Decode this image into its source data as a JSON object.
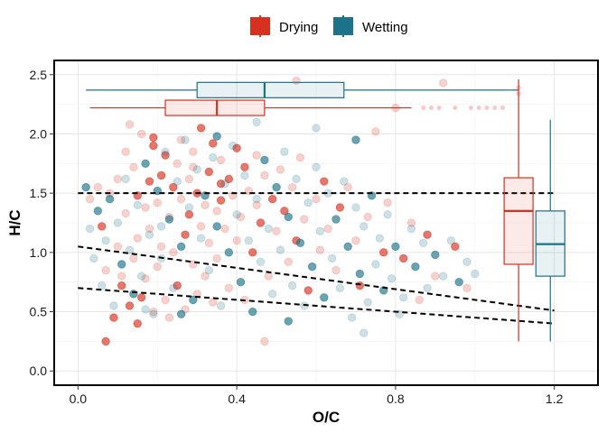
{
  "chart_data": {
    "type": "scatter",
    "xlabel": "O/C",
    "ylabel": "H/C",
    "xlim": [
      -0.06,
      1.31
    ],
    "ylim": [
      -0.12,
      2.62
    ],
    "x_ticks": [
      0.0,
      0.4,
      0.8,
      1.2
    ],
    "y_ticks": [
      0.0,
      0.5,
      1.0,
      1.5,
      2.0,
      2.5
    ],
    "x_tick_labels": [
      "0.0",
      "0.4",
      "0.8",
      "1.2"
    ],
    "y_tick_labels": [
      "0.0",
      "0.5",
      "1.0",
      "1.5",
      "2.0",
      "2.5"
    ],
    "grid": true,
    "legend_position": "top",
    "legend": [
      {
        "label": "Drying",
        "color": "#d7301f"
      },
      {
        "label": "Wetting",
        "color": "#1b7289"
      }
    ],
    "reference_lines": [
      {
        "style": "dashed",
        "x": [
          0.0,
          1.2
        ],
        "y": [
          1.5,
          1.5
        ]
      },
      {
        "style": "dashed",
        "x": [
          0.0,
          1.2
        ],
        "y": [
          1.05,
          0.51
        ]
      },
      {
        "style": "dashed",
        "x": [
          0.0,
          1.2
        ],
        "y": [
          0.7,
          0.4
        ]
      }
    ],
    "marginal_boxplots": {
      "x": [
        {
          "series": "Wetting",
          "y_position": 2.37,
          "whisker_low": 0.02,
          "q1": 0.3,
          "median": 0.47,
          "q3": 0.67,
          "whisker_high": 1.11
        },
        {
          "series": "Drying",
          "y_position": 2.22,
          "whisker_low": 0.03,
          "q1": 0.22,
          "median": 0.35,
          "q3": 0.47,
          "whisker_high": 0.84
        }
      ],
      "y": [
        {
          "series": "Drying",
          "x_position": 1.11,
          "whisker_low": 0.25,
          "q1": 0.9,
          "median": 1.35,
          "q3": 1.63,
          "whisker_high": 2.46
        },
        {
          "series": "Wetting",
          "x_position": 1.19,
          "whisker_low": 0.25,
          "q1": 0.8,
          "median": 1.07,
          "q3": 1.35,
          "whisker_high": 2.12
        }
      ],
      "x_outliers": [
        {
          "series": "Drying",
          "values": [
            0.87,
            0.89,
            0.91,
            0.95,
            0.99,
            1.01,
            1.03,
            1.05,
            1.07
          ]
        }
      ],
      "y_outliers": [
        {
          "series": "Drying",
          "values": [
            2.34,
            2.39
          ]
        }
      ]
    },
    "series": [
      {
        "name": "Drying",
        "color": "#d7301f",
        "points": [
          [
            0.07,
            0.25
          ],
          [
            0.03,
            1.45
          ],
          [
            0.05,
            1.55
          ],
          [
            0.06,
            1.22
          ],
          [
            0.07,
            0.85
          ],
          [
            0.08,
            1.5
          ],
          [
            0.09,
            0.45
          ],
          [
            0.1,
            1.62
          ],
          [
            0.1,
            1.05
          ],
          [
            0.11,
            0.72
          ],
          [
            0.12,
            1.85
          ],
          [
            0.12,
            1.33
          ],
          [
            0.13,
            0.55
          ],
          [
            0.14,
            1.72
          ],
          [
            0.14,
            0.95
          ],
          [
            0.15,
            1.48
          ],
          [
            0.15,
            1.12
          ],
          [
            0.16,
            2.0
          ],
          [
            0.16,
            0.62
          ],
          [
            0.17,
            1.38
          ],
          [
            0.17,
            0.78
          ],
          [
            0.18,
            1.6
          ],
          [
            0.18,
            1.2
          ],
          [
            0.19,
            0.5
          ],
          [
            0.19,
            1.9
          ],
          [
            0.2,
            1.42
          ],
          [
            0.2,
            0.88
          ],
          [
            0.21,
            1.65
          ],
          [
            0.21,
            1.05
          ],
          [
            0.22,
            0.6
          ],
          [
            0.22,
            1.82
          ],
          [
            0.23,
            1.3
          ],
          [
            0.23,
            0.45
          ],
          [
            0.24,
            1.55
          ],
          [
            0.24,
            1.0
          ],
          [
            0.25,
            1.75
          ],
          [
            0.25,
            0.72
          ],
          [
            0.26,
            1.45
          ],
          [
            0.26,
            1.95
          ],
          [
            0.27,
            1.15
          ],
          [
            0.27,
            0.52
          ],
          [
            0.28,
            1.62
          ],
          [
            0.28,
            1.32
          ],
          [
            0.29,
            0.9
          ],
          [
            0.29,
            1.85
          ],
          [
            0.3,
            1.5
          ],
          [
            0.3,
            0.65
          ],
          [
            0.31,
            1.22
          ],
          [
            0.31,
            2.05
          ],
          [
            0.32,
            1.4
          ],
          [
            0.32,
            0.8
          ],
          [
            0.33,
            1.68
          ],
          [
            0.33,
            1.08
          ],
          [
            0.34,
            0.58
          ],
          [
            0.34,
            1.92
          ],
          [
            0.35,
            1.35
          ],
          [
            0.35,
            0.95
          ],
          [
            0.36,
            1.58
          ],
          [
            0.36,
            1.78
          ],
          [
            0.37,
            1.2
          ],
          [
            0.38,
            1.62
          ],
          [
            0.38,
            0.7
          ],
          [
            0.39,
            1.48
          ],
          [
            0.4,
            1.88
          ],
          [
            0.4,
            1.1
          ],
          [
            0.41,
            1.3
          ],
          [
            0.42,
            1.72
          ],
          [
            0.42,
            0.6
          ],
          [
            0.43,
            1.52
          ],
          [
            0.44,
            1.0
          ],
          [
            0.45,
            1.82
          ],
          [
            0.45,
            1.4
          ],
          [
            0.46,
            1.25
          ],
          [
            0.47,
            1.65
          ],
          [
            0.48,
            0.8
          ],
          [
            0.49,
            1.45
          ],
          [
            0.5,
            1.18
          ],
          [
            0.51,
            1.7
          ],
          [
            0.52,
            1.35
          ],
          [
            0.53,
            0.92
          ],
          [
            0.54,
            1.55
          ],
          [
            0.55,
            1.1
          ],
          [
            0.56,
            1.8
          ],
          [
            0.57,
            1.28
          ],
          [
            0.58,
            0.68
          ],
          [
            0.6,
            1.45
          ],
          [
            0.61,
            1.02
          ],
          [
            0.62,
            1.6
          ],
          [
            0.63,
            1.2
          ],
          [
            0.65,
            0.85
          ],
          [
            0.66,
            1.38
          ],
          [
            0.68,
            1.55
          ],
          [
            0.7,
            1.1
          ],
          [
            0.71,
            0.72
          ],
          [
            0.73,
            1.3
          ],
          [
            0.75,
            2.02
          ],
          [
            0.77,
            1.0
          ],
          [
            0.78,
            1.42
          ],
          [
            0.8,
            2.22
          ],
          [
            0.82,
            0.95
          ],
          [
            0.84,
            1.25
          ],
          [
            0.86,
            0.6
          ],
          [
            0.88,
            1.15
          ],
          [
            0.9,
            0.8
          ],
          [
            0.92,
            2.43
          ],
          [
            0.95,
            1.05
          ],
          [
            0.98,
            0.7
          ],
          [
            0.13,
            2.08
          ],
          [
            0.15,
            0.4
          ],
          [
            0.47,
            0.25
          ],
          [
            0.55,
            2.45
          ],
          [
            0.19,
            1.97
          ],
          [
            0.11,
            0.8
          ],
          [
            0.29,
            1.72
          ],
          [
            0.36,
            1.44
          ]
        ]
      },
      {
        "name": "Wetting",
        "color": "#1b7289",
        "points": [
          [
            0.02,
            1.55
          ],
          [
            0.03,
            1.2
          ],
          [
            0.04,
            0.95
          ],
          [
            0.05,
            1.35
          ],
          [
            0.06,
            0.72
          ],
          [
            0.07,
            1.1
          ],
          [
            0.08,
            1.45
          ],
          [
            0.09,
            0.55
          ],
          [
            0.1,
            1.25
          ],
          [
            0.11,
            0.9
          ],
          [
            0.12,
            1.62
          ],
          [
            0.13,
            1.02
          ],
          [
            0.14,
            0.65
          ],
          [
            0.15,
            1.4
          ],
          [
            0.16,
            0.8
          ],
          [
            0.17,
            1.75
          ],
          [
            0.18,
            1.15
          ],
          [
            0.19,
            0.48
          ],
          [
            0.2,
            1.52
          ],
          [
            0.21,
            0.95
          ],
          [
            0.22,
            1.85
          ],
          [
            0.23,
            1.28
          ],
          [
            0.24,
            0.7
          ],
          [
            0.25,
            1.6
          ],
          [
            0.26,
            1.05
          ],
          [
            0.27,
            1.95
          ],
          [
            0.28,
            1.38
          ],
          [
            0.29,
            0.6
          ],
          [
            0.3,
            1.7
          ],
          [
            0.31,
            1.12
          ],
          [
            0.32,
            1.48
          ],
          [
            0.33,
            0.85
          ],
          [
            0.34,
            1.8
          ],
          [
            0.35,
            1.22
          ],
          [
            0.36,
            0.55
          ],
          [
            0.37,
            1.58
          ],
          [
            0.38,
            1.0
          ],
          [
            0.39,
            1.9
          ],
          [
            0.4,
            1.32
          ],
          [
            0.41,
            0.75
          ],
          [
            0.42,
            1.65
          ],
          [
            0.43,
            1.1
          ],
          [
            0.44,
            0.5
          ],
          [
            0.45,
            1.45
          ],
          [
            0.46,
            0.92
          ],
          [
            0.47,
            1.78
          ],
          [
            0.48,
            1.2
          ],
          [
            0.49,
            0.65
          ],
          [
            0.5,
            1.55
          ],
          [
            0.51,
            1.02
          ],
          [
            0.52,
            1.85
          ],
          [
            0.53,
            1.3
          ],
          [
            0.54,
            0.72
          ],
          [
            0.55,
            1.62
          ],
          [
            0.56,
            1.08
          ],
          [
            0.57,
            0.55
          ],
          [
            0.58,
            1.42
          ],
          [
            0.59,
            0.88
          ],
          [
            0.6,
            1.72
          ],
          [
            0.61,
            1.18
          ],
          [
            0.62,
            0.62
          ],
          [
            0.63,
            1.5
          ],
          [
            0.64,
            0.95
          ],
          [
            0.65,
            1.28
          ],
          [
            0.66,
            0.7
          ],
          [
            0.67,
            1.6
          ],
          [
            0.68,
            1.05
          ],
          [
            0.69,
            0.45
          ],
          [
            0.7,
            1.38
          ],
          [
            0.71,
            0.82
          ],
          [
            0.72,
            1.22
          ],
          [
            0.73,
            0.58
          ],
          [
            0.74,
            1.48
          ],
          [
            0.75,
            0.9
          ],
          [
            0.76,
            1.12
          ],
          [
            0.77,
            0.68
          ],
          [
            0.78,
            1.32
          ],
          [
            0.79,
            0.78
          ],
          [
            0.8,
            1.05
          ],
          [
            0.82,
            0.62
          ],
          [
            0.84,
            1.2
          ],
          [
            0.85,
            0.88
          ],
          [
            0.87,
            1.08
          ],
          [
            0.88,
            0.7
          ],
          [
            0.9,
            0.98
          ],
          [
            0.92,
            0.8
          ],
          [
            0.94,
            1.1
          ],
          [
            0.96,
            0.75
          ],
          [
            0.98,
            0.92
          ],
          [
            1.0,
            0.82
          ],
          [
            0.7,
            1.95
          ],
          [
            0.6,
            2.05
          ],
          [
            0.45,
            2.1
          ],
          [
            0.35,
            1.98
          ],
          [
            0.72,
            0.32
          ],
          [
            0.81,
            0.48
          ],
          [
            0.53,
            0.42
          ],
          [
            0.17,
            0.52
          ],
          [
            0.21,
            1.22
          ],
          [
            0.26,
            0.48
          ]
        ]
      }
    ]
  }
}
